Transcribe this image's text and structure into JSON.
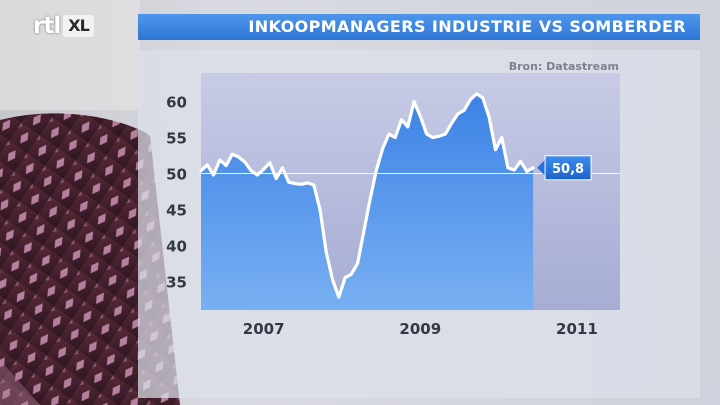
{
  "logo": {
    "brand": "rtl",
    "channel": "XL"
  },
  "header": {
    "title": "INKOOPMANAGERS INDUSTRIE VS SOMBERDER"
  },
  "chart_data": {
    "type": "area",
    "source": "Bron: Datastream",
    "title": "INKOOPMANAGERS INDUSTRIE VS SOMBERDER",
    "xlabel": "",
    "ylabel": "",
    "y_ticks": [
      35,
      40,
      45,
      50,
      55,
      60
    ],
    "ylim": [
      31,
      64
    ],
    "x_ticks": [
      "2007",
      "2009",
      "2011"
    ],
    "x_tick_positions": [
      2007.0,
      2009.0,
      2011.0
    ],
    "xlim": [
      2006.2,
      2011.55
    ],
    "reference_line": 50,
    "last_value_label": "50,8",
    "grid": false,
    "series": [
      {
        "color": "#ffffff",
        "fill_color": "#4a8ee8",
        "points": [
          [
            2006.2,
            50.4
          ],
          [
            2006.28,
            51.2
          ],
          [
            2006.36,
            49.8
          ],
          [
            2006.44,
            51.9
          ],
          [
            2006.52,
            51.1
          ],
          [
            2006.6,
            52.7
          ],
          [
            2006.68,
            52.3
          ],
          [
            2006.76,
            51.6
          ],
          [
            2006.84,
            50.4
          ],
          [
            2006.92,
            49.8
          ],
          [
            2007.0,
            50.6
          ],
          [
            2007.08,
            51.5
          ],
          [
            2007.16,
            49.3
          ],
          [
            2007.24,
            50.8
          ],
          [
            2007.32,
            48.8
          ],
          [
            2007.4,
            48.6
          ],
          [
            2007.48,
            48.5
          ],
          [
            2007.56,
            48.7
          ],
          [
            2007.64,
            48.4
          ],
          [
            2007.72,
            45.0
          ],
          [
            2007.8,
            39.0
          ],
          [
            2007.88,
            35.2
          ],
          [
            2007.96,
            32.8
          ],
          [
            2008.04,
            35.5
          ],
          [
            2008.12,
            36.0
          ],
          [
            2008.2,
            37.5
          ],
          [
            2008.28,
            42.0
          ],
          [
            2008.36,
            46.5
          ],
          [
            2008.44,
            50.5
          ],
          [
            2008.52,
            53.5
          ],
          [
            2008.6,
            55.5
          ],
          [
            2008.68,
            55.0
          ],
          [
            2008.76,
            57.5
          ],
          [
            2008.84,
            56.5
          ],
          [
            2008.92,
            60.0
          ],
          [
            2009.0,
            58.0
          ],
          [
            2009.08,
            55.5
          ],
          [
            2009.16,
            55.0
          ],
          [
            2009.24,
            55.2
          ],
          [
            2009.32,
            55.5
          ],
          [
            2009.4,
            57.0
          ],
          [
            2009.48,
            58.3
          ],
          [
            2009.56,
            58.8
          ],
          [
            2009.64,
            60.3
          ],
          [
            2009.72,
            61.1
          ],
          [
            2009.8,
            60.5
          ],
          [
            2009.88,
            57.8
          ],
          [
            2009.96,
            53.3
          ],
          [
            2010.04,
            55.0
          ],
          [
            2010.12,
            50.8
          ],
          [
            2010.2,
            50.5
          ],
          [
            2010.28,
            51.7
          ],
          [
            2010.36,
            50.3
          ],
          [
            2010.44,
            50.8
          ]
        ]
      }
    ]
  }
}
